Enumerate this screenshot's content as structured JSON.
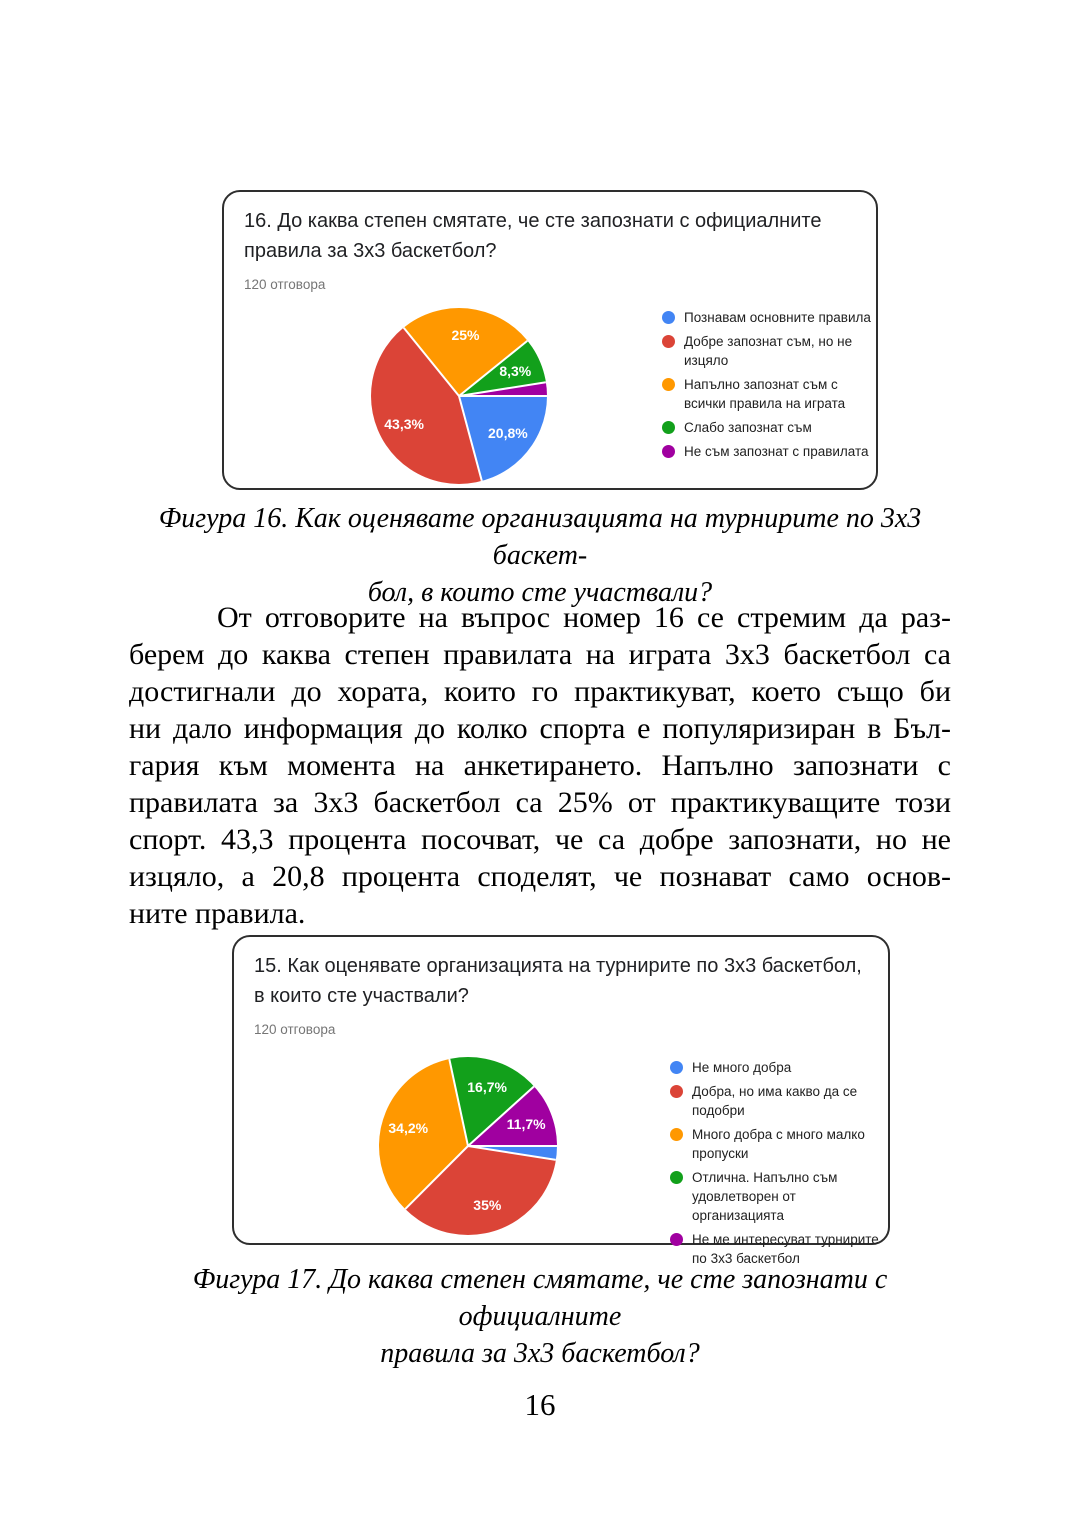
{
  "page_number": "16",
  "captions": {
    "fig16": {
      "line1": "Фигура 16. Как оценявате организацията на турнирите по 3х3 баскет-",
      "line2": "бол, в които сте участвали?"
    },
    "fig17": {
      "line1": "Фигура 17. До каква степен смятате, че сте запознати с официалните",
      "line2": "правила за 3х3 баскетбол?"
    }
  },
  "paragraph": {
    "lines": [
      "От отговорите на въпрос номер 16 се стремим да раз-",
      "берем до каква степен правилата на играта 3х3 баскетбол са",
      "достигнали до хората, които го практикуват, което също би",
      "ни дало информация до колко спорта е популяризиран в Бъл-",
      "гария към момента на анкетирането. Напълно запознати с",
      "правилата за 3х3 баскетбол са 25% от практикуващите този",
      "спорт. 43,3 процента посочват, че са добре запознати, но не",
      "изцяло, а 20,8 процента споделят, че познават само основ-",
      "ните правила."
    ]
  },
  "chart_data": [
    {
      "type": "pie",
      "title": "16. До каква степен смятате, че сте запознати с официалните правила за 3х3 баскетбол?",
      "subtitle": "120 отговора",
      "legend_position": "right",
      "start_angle_deg": 90,
      "total_responses": 120,
      "slices": [
        {
          "label": "Познавам основните правила",
          "value_pct": 20.8,
          "display": "20,8%",
          "color": "#4285F4"
        },
        {
          "label": "Добре запознат съм, но не изцяло",
          "value_pct": 43.3,
          "display": "43,3%",
          "color": "#DB4437"
        },
        {
          "label": "Напълно запознат съм с всички правила на играта",
          "value_pct": 25.0,
          "display": "25%",
          "color": "#FF9800"
        },
        {
          "label": "Слабо запознат съм",
          "value_pct": 8.3,
          "display": "8,3%",
          "color": "#12A01B"
        },
        {
          "label": "Не съм запознат с правилата",
          "value_pct": 2.5,
          "display": "",
          "color": "#A000A0"
        }
      ]
    },
    {
      "type": "pie",
      "title": "15. Как оценявате организацията на турнирите по 3х3 баскетбол, в които сте участвали?",
      "subtitle": "120 отговора",
      "legend_position": "right",
      "start_angle_deg": 90,
      "total_responses": 120,
      "slices": [
        {
          "label": "Не много добра",
          "value_pct": 2.5,
          "display": "",
          "color": "#4285F4"
        },
        {
          "label": "Добра, но има какво да се подобри",
          "value_pct": 35.0,
          "display": "35%",
          "color": "#DB4437"
        },
        {
          "label": "Много добра с много малко пропуски",
          "value_pct": 34.2,
          "display": "34,2%",
          "color": "#FF9800"
        },
        {
          "label": "Отлична. Напълно съм удовлетворен от организацията",
          "value_pct": 16.7,
          "display": "16,7%",
          "color": "#12A01B"
        },
        {
          "label": "Не ме интересуват турнирите по 3х3 баскетбол",
          "value_pct": 11.7,
          "display": "11,7%",
          "color": "#A000A0"
        }
      ]
    }
  ]
}
